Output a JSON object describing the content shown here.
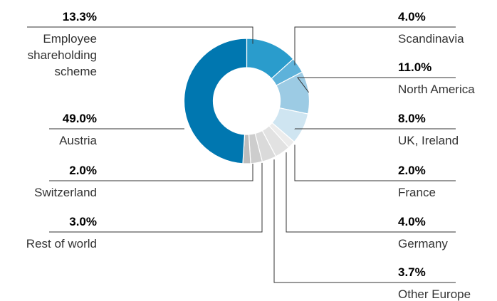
{
  "chart_data": {
    "type": "pie",
    "subtype": "donut",
    "title": "",
    "unit": "%",
    "series": [
      {
        "labels": [
          "Employee shareholding scheme",
          "Scandinavia",
          "North America",
          "UK, Ireland",
          "France",
          "Germany",
          "Other Europe",
          "Rest of world",
          "Switzerland",
          "Austria"
        ],
        "values": [
          13.3,
          4.0,
          11.0,
          8.0,
          2.0,
          4.0,
          3.7,
          3.0,
          2.0,
          49.0
        ],
        "value_labels": [
          "13.3%",
          "4.0%",
          "11.0%",
          "8.0%",
          "2.0%",
          "4.0%",
          "3.7%",
          "3.0%",
          "2.0%",
          "49.0%"
        ],
        "label_lines": [
          [
            "Employee",
            "shareholding",
            "scheme"
          ],
          [
            "Scandinavia"
          ],
          [
            "North America"
          ],
          [
            "UK, Ireland"
          ],
          [
            "France"
          ],
          [
            "Germany"
          ],
          [
            "Other Europe"
          ],
          [
            "Rest of world"
          ],
          [
            "Switzerland"
          ],
          [
            "Austria"
          ]
        ],
        "label_side": [
          "left",
          "right",
          "right",
          "right",
          "right",
          "right",
          "right",
          "left",
          "left",
          "left"
        ],
        "colors": [
          "#2a9ccc",
          "#5eb2da",
          "#9ccbe4",
          "#cfe5f1",
          "#ececec",
          "#e2e2e2",
          "#dadada",
          "#cdcdcd",
          "#bdbdbd",
          "#0077b0"
        ]
      }
    ],
    "legend": "none"
  }
}
